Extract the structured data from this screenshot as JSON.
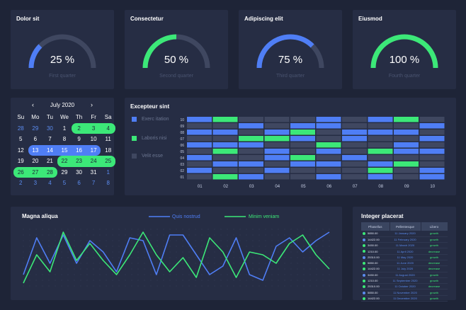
{
  "gauges": [
    {
      "title": "Dolor sit",
      "value": 25,
      "value_label": "25 %",
      "sub": "First quarter",
      "color": "#4f7ef5"
    },
    {
      "title": "Consectetur",
      "value": 50,
      "value_label": "50 %",
      "sub": "Second quarter",
      "color": "#3ce878"
    },
    {
      "title": "Adipiscing elit",
      "value": 75,
      "value_label": "75 %",
      "sub": "Third quarter",
      "color": "#4f7ef5"
    },
    {
      "title": "Eiusmod",
      "value": 100,
      "value_label": "100 %",
      "sub": "Fourth quarter",
      "color": "#3ce878"
    }
  ],
  "calendar": {
    "month_label": "July  2020",
    "prev_icon": "chevron-left-icon",
    "next_icon": "chevron-right-icon",
    "weekdays": [
      "Su",
      "Mo",
      "Tu",
      "We",
      "Th",
      "Fr",
      "Sa"
    ],
    "weeks": [
      [
        {
          "d": "28",
          "t": "other"
        },
        {
          "d": "29",
          "t": "other"
        },
        {
          "d": "30",
          "t": "other"
        },
        {
          "d": "1",
          "t": ""
        },
        {
          "d": "2",
          "t": "green rl"
        },
        {
          "d": "3",
          "t": "green"
        },
        {
          "d": "4",
          "t": "green rr"
        }
      ],
      [
        {
          "d": "5",
          "t": ""
        },
        {
          "d": "6",
          "t": ""
        },
        {
          "d": "7",
          "t": ""
        },
        {
          "d": "8",
          "t": ""
        },
        {
          "d": "9",
          "t": ""
        },
        {
          "d": "10",
          "t": ""
        },
        {
          "d": "11",
          "t": ""
        }
      ],
      [
        {
          "d": "12",
          "t": ""
        },
        {
          "d": "13",
          "t": "blue rl"
        },
        {
          "d": "14",
          "t": "blue"
        },
        {
          "d": "15",
          "t": "blue"
        },
        {
          "d": "16",
          "t": "blue"
        },
        {
          "d": "17",
          "t": "blue rr"
        },
        {
          "d": "18",
          "t": ""
        }
      ],
      [
        {
          "d": "19",
          "t": ""
        },
        {
          "d": "20",
          "t": ""
        },
        {
          "d": "21",
          "t": ""
        },
        {
          "d": "22",
          "t": "green rl"
        },
        {
          "d": "23",
          "t": "green"
        },
        {
          "d": "24",
          "t": "green"
        },
        {
          "d": "25",
          "t": "green rr"
        }
      ],
      [
        {
          "d": "26",
          "t": "green rl"
        },
        {
          "d": "27",
          "t": "green"
        },
        {
          "d": "28",
          "t": "green rr"
        },
        {
          "d": "29",
          "t": ""
        },
        {
          "d": "30",
          "t": ""
        },
        {
          "d": "31",
          "t": ""
        },
        {
          "d": "1",
          "t": "other"
        }
      ],
      [
        {
          "d": "2",
          "t": "other"
        },
        {
          "d": "3",
          "t": "other"
        },
        {
          "d": "4",
          "t": "other"
        },
        {
          "d": "5",
          "t": "other"
        },
        {
          "d": "6",
          "t": "other"
        },
        {
          "d": "7",
          "t": "other"
        },
        {
          "d": "8",
          "t": "other"
        }
      ]
    ]
  },
  "heatmap": {
    "title": "Excepteur sint",
    "legend": [
      {
        "label": "Exerc itation",
        "color": "#4f7ef5"
      },
      {
        "label": "Laboris nisi",
        "color": "#3ce878"
      },
      {
        "label": "Velit esse",
        "color": "#3f4760"
      }
    ],
    "columns": [
      "01",
      "02",
      "03",
      "04",
      "05",
      "06",
      "07",
      "08",
      "09",
      "10"
    ],
    "rows": [
      "10",
      "09",
      "08",
      "07",
      "06",
      "05",
      "04",
      "03",
      "02",
      "01"
    ],
    "cells": [
      [
        0,
        1,
        2,
        2,
        2,
        0,
        2,
        0,
        1,
        2
      ],
      [
        2,
        2,
        0,
        2,
        0,
        0,
        2,
        2,
        2,
        0
      ],
      [
        0,
        0,
        2,
        0,
        1,
        2,
        0,
        0,
        0,
        2
      ],
      [
        2,
        2,
        1,
        1,
        0,
        2,
        0,
        2,
        2,
        0
      ],
      [
        0,
        0,
        0,
        2,
        2,
        1,
        2,
        2,
        0,
        2
      ],
      [
        2,
        1,
        2,
        0,
        2,
        0,
        2,
        1,
        0,
        0
      ],
      [
        0,
        2,
        2,
        0,
        1,
        2,
        0,
        2,
        2,
        2
      ],
      [
        2,
        0,
        0,
        2,
        0,
        0,
        2,
        0,
        1,
        2
      ],
      [
        0,
        2,
        2,
        0,
        2,
        2,
        2,
        1,
        2,
        0
      ],
      [
        2,
        1,
        0,
        2,
        2,
        0,
        2,
        0,
        2,
        0
      ]
    ]
  },
  "chart_data": {
    "type": "line",
    "title": "Magna aliqua",
    "x": [
      0,
      1,
      2,
      3,
      4,
      5,
      6,
      7,
      8,
      9,
      10,
      11,
      12,
      13,
      14,
      15,
      16,
      17,
      18,
      19,
      20,
      21,
      22,
      23
    ],
    "ylim": [
      0,
      100
    ],
    "series": [
      {
        "name": "Quis nostrud",
        "color": "#4f7ef5",
        "values": [
          20,
          85,
          40,
          90,
          40,
          80,
          60,
          25,
          85,
          80,
          20,
          90,
          90,
          55,
          20,
          35,
          85,
          20,
          10,
          70,
          85,
          60,
          80,
          95
        ]
      },
      {
        "name": "Minim veniam",
        "color": "#3ce878",
        "values": [
          5,
          55,
          25,
          95,
          45,
          75,
          45,
          20,
          55,
          95,
          55,
          25,
          50,
          15,
          85,
          60,
          15,
          60,
          55,
          40,
          75,
          90,
          55,
          30
        ]
      }
    ]
  },
  "table": {
    "title": "Integer placerat",
    "headers": [
      "Phasellus",
      "Pellentesque",
      "Libero"
    ],
    "rows": [
      {
        "dot": "green",
        "a": "5850.00",
        "b": "11 January 2020",
        "c": "growth"
      },
      {
        "dot": "blue",
        "a": "14422.00",
        "b": "11 February 2020",
        "c": "growth"
      },
      {
        "dot": "green",
        "a": "3450.00",
        "b": "11 March 2020",
        "c": "growth"
      },
      {
        "dot": "green",
        "a": "1210.00",
        "b": "11 April 2020",
        "c": "decrease"
      },
      {
        "dot": "blue",
        "a": "25310.00",
        "b": "11 May 2020",
        "c": "growth"
      },
      {
        "dot": "green",
        "a": "5850.00",
        "b": "11 June 2020",
        "c": "decrease"
      },
      {
        "dot": "green",
        "a": "14422.00",
        "b": "11 July 2020",
        "c": "decrease"
      },
      {
        "dot": "blue",
        "a": "3450.00",
        "b": "11 August 2020",
        "c": "growth"
      },
      {
        "dot": "green",
        "a": "1210.00",
        "b": "11 September 2020",
        "c": "growth"
      },
      {
        "dot": "green",
        "a": "25310.00",
        "b": "11 October 2020",
        "c": "decrease"
      },
      {
        "dot": "blue",
        "a": "5850.00",
        "b": "11 November 2020",
        "c": "growth"
      },
      {
        "dot": "green",
        "a": "14422.00",
        "b": "11 December 2020",
        "c": "growth"
      }
    ]
  }
}
